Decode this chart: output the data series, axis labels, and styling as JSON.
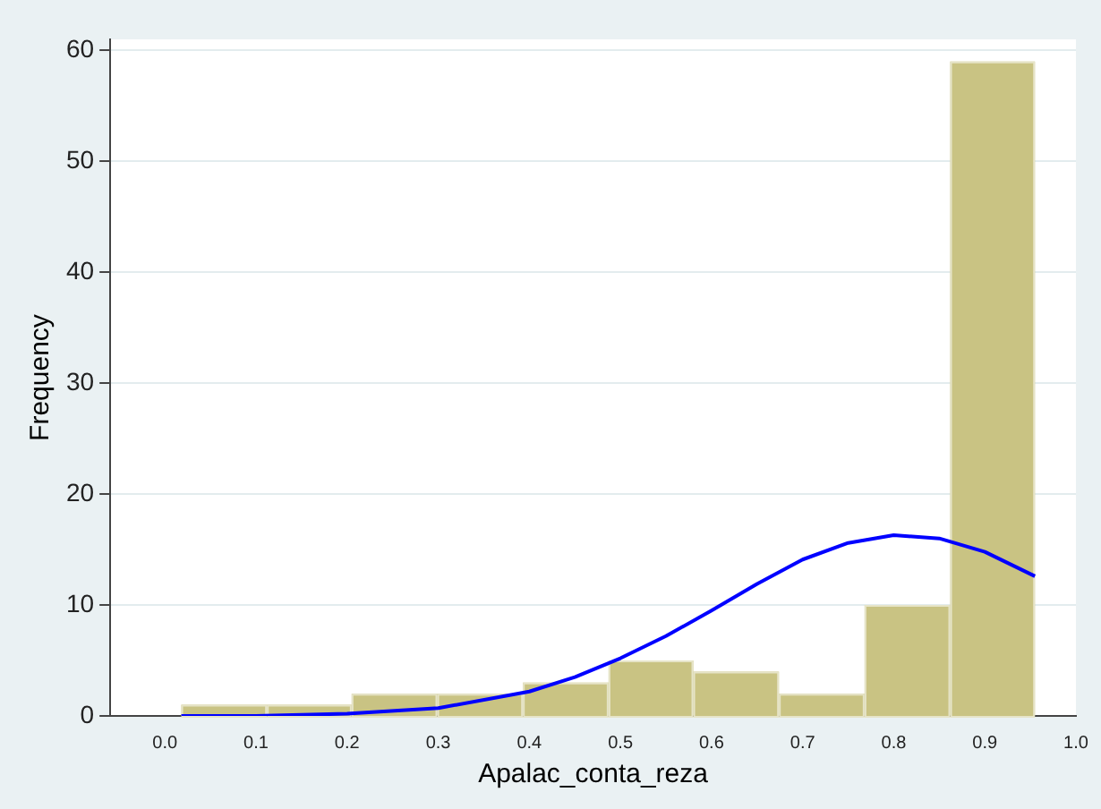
{
  "chart_data": {
    "type": "histogram",
    "xlabel": "Apalac_conta_reza",
    "ylabel": "Frequency",
    "bins": [
      0.018,
      0.112,
      0.205,
      0.299,
      0.393,
      0.487,
      0.58,
      0.674,
      0.768,
      0.862,
      0.955
    ],
    "values": [
      1,
      1,
      2,
      2,
      3,
      5,
      4,
      2,
      10,
      59
    ],
    "color": "#c9c383",
    "series": [
      {
        "type": "line",
        "color": "#0000ff",
        "x": [
          0.018,
          0.1,
          0.2,
          0.3,
          0.4,
          0.45,
          0.5,
          0.55,
          0.6,
          0.65,
          0.7,
          0.75,
          0.8,
          0.85,
          0.9,
          0.955
        ],
        "values": [
          0,
          0,
          0.2,
          0.7,
          2.2,
          3.5,
          5.2,
          7.2,
          9.5,
          11.9,
          14.1,
          15.6,
          16.3,
          16.0,
          14.8,
          12.6
        ]
      }
    ],
    "xlim": [
      -0.06,
      1.0
    ],
    "xticks": [
      {
        "value": 0,
        "label": "0.0"
      },
      0.1,
      0.2,
      0.3,
      0.4,
      0.5,
      0.6,
      0.7,
      0.8,
      0.9,
      {
        "value": 1,
        "label": "1.0"
      }
    ],
    "ylim": [
      0,
      61
    ],
    "yticks": [
      0,
      10,
      20,
      30,
      40,
      50,
      60
    ],
    "grid": "y",
    "legend": false,
    "marker": "none"
  }
}
